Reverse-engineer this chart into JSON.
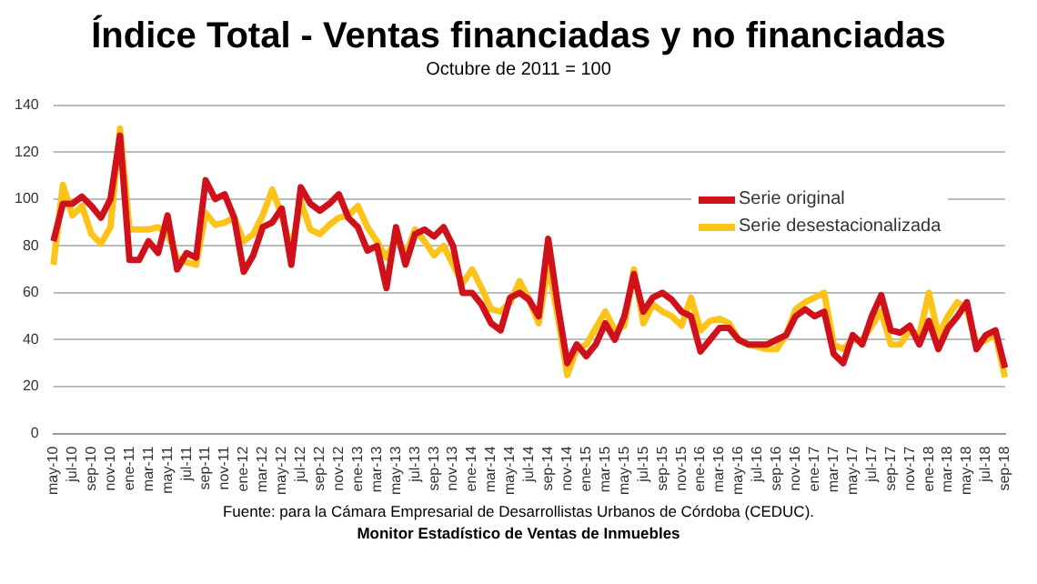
{
  "chart_data": {
    "type": "line",
    "title": "Índice Total - Ventas financiadas y no financiadas",
    "subtitle": "Octubre de 2011 = 100",
    "categories": [
      "may-10",
      null,
      "jul-10",
      null,
      "sep-10",
      null,
      "nov-10",
      null,
      "ene-11",
      null,
      "mar-11",
      null,
      "may-11",
      null,
      "jul-11",
      null,
      "sep-11",
      null,
      "nov-11",
      null,
      "ene-12",
      null,
      "mar-12",
      null,
      "may-12",
      null,
      "jul-12",
      null,
      "sep-12",
      null,
      "nov-12",
      null,
      "ene-13",
      null,
      "mar-13",
      null,
      "may-13",
      null,
      "jul-13",
      null,
      "sep-13",
      null,
      "nov-13",
      null,
      "ene-14",
      null,
      "mar-14",
      null,
      "may-14",
      null,
      "jul-14",
      null,
      "sep-14",
      null,
      "nov-14",
      null,
      "ene-15",
      null,
      "mar-15",
      null,
      "may-15",
      null,
      "jul-15",
      null,
      "sep-15",
      null,
      "nov-15",
      null,
      "ene-16",
      null,
      "mar-16",
      null,
      "may-16",
      null,
      "jul-16",
      null,
      "sep-16",
      null,
      "nov-16",
      null,
      "ene-17",
      null,
      "mar-17",
      null,
      "may-17",
      null,
      "jul-17",
      null,
      "sep-17",
      null,
      "nov-17",
      null,
      "ene-18",
      null,
      "mar-18",
      null,
      "may-18",
      null,
      "jul-18",
      null,
      "sep-18"
    ],
    "series": [
      {
        "name": "Serie original",
        "color": "#d0101a",
        "values": [
          82,
          98,
          98,
          101,
          97,
          92,
          100,
          127,
          74,
          74,
          82,
          77,
          93,
          70,
          77,
          75,
          108,
          100,
          102,
          92,
          69,
          76,
          88,
          90,
          96,
          72,
          105,
          98,
          95,
          98,
          102,
          92,
          88,
          78,
          80,
          62,
          88,
          72,
          85,
          87,
          84,
          88,
          80,
          60,
          60,
          55,
          47,
          44,
          58,
          60,
          57,
          50,
          83,
          55,
          30,
          38,
          33,
          38,
          47,
          40,
          50,
          68,
          52,
          58,
          60,
          57,
          52,
          50,
          35,
          40,
          45,
          45,
          40,
          38,
          38,
          38,
          40,
          42,
          50,
          53,
          50,
          52,
          34,
          30,
          42,
          38,
          50,
          59,
          44,
          43,
          46,
          38,
          48,
          36,
          45,
          50,
          56,
          36,
          42,
          44,
          28
        ]
      },
      {
        "name": "Serie desestacionalizada",
        "color": "#fcc419",
        "values": [
          72,
          106,
          93,
          97,
          85,
          81,
          88,
          130,
          87,
          87,
          87,
          88,
          85,
          75,
          73,
          72,
          94,
          89,
          90,
          92,
          82,
          85,
          93,
          104,
          93,
          78,
          99,
          87,
          85,
          89,
          92,
          93,
          97,
          88,
          82,
          75,
          83,
          76,
          87,
          82,
          76,
          80,
          72,
          64,
          70,
          62,
          53,
          52,
          56,
          65,
          57,
          47,
          72,
          50,
          25,
          36,
          38,
          45,
          52,
          44,
          46,
          70,
          47,
          55,
          52,
          50,
          46,
          58,
          44,
          48,
          49,
          47,
          40,
          38,
          37,
          36,
          36,
          42,
          53,
          56,
          58,
          60,
          38,
          36,
          40,
          40,
          46,
          52,
          38,
          38,
          44,
          42,
          60,
          42,
          50,
          56,
          53,
          38,
          40,
          42,
          24
        ]
      }
    ],
    "ylim": [
      0,
      140
    ],
    "yticks": [
      0,
      20,
      40,
      60,
      80,
      100,
      120,
      140
    ],
    "grid": "y",
    "legend": "top right",
    "marker": "none",
    "line_style": "solid",
    "annotations": [
      "Fuente: para la Cámara Empresarial de Desarrollistas Urbanos de Córdoba (CEDUC).",
      "Monitor Estadístico de Ventas de Inmuebles"
    ]
  }
}
